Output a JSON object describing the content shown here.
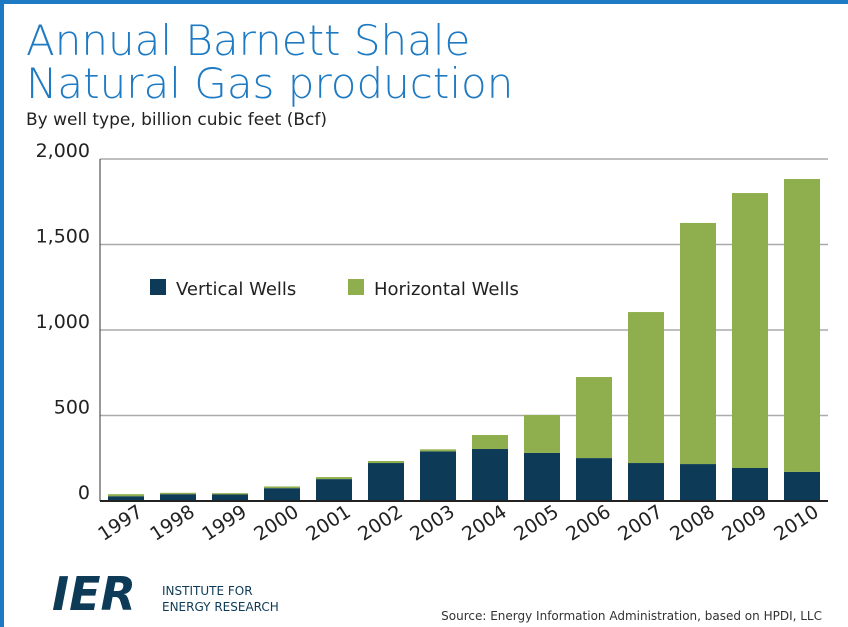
{
  "chart_data": {
    "type": "stacked_bar",
    "title": [
      "Annual Barnett Shale",
      "Natural Gas production"
    ],
    "subtitle": "By well type, billion cubic feet (Bcf)",
    "categories": [
      "1997",
      "1998",
      "1999",
      "2000",
      "2001",
      "2002",
      "2003",
      "2004",
      "2005",
      "2006",
      "2007",
      "2008",
      "2009",
      "2010"
    ],
    "series": [
      {
        "name": "Vertical Wells",
        "color": "#0d3a56",
        "values": [
          28,
          40,
          38,
          75,
          128,
          222,
          290,
          304,
          281,
          251,
          222,
          216,
          193,
          170
        ]
      },
      {
        "name": "Horizontal Wells",
        "color": "#8faf4f",
        "values": [
          12,
          8,
          8,
          10,
          12,
          12,
          12,
          82,
          222,
          474,
          883,
          1410,
          1608,
          1713
        ]
      }
    ],
    "ylim": [
      0,
      2000
    ],
    "yticks": [
      0,
      500,
      {
        "value": 1000,
        "label": "1,000"
      },
      {
        "value": 1500,
        "label": "1,500"
      },
      {
        "value": 2000,
        "label": "2,000"
      }
    ],
    "grid": true,
    "legend": "upper left",
    "source": "Source: Energy Information Administration, based on HPDI, LLC",
    "logo": {
      "mark": "IER",
      "name": [
        "INSTITUTE FOR",
        "ENERGY RESEARCH"
      ]
    }
  }
}
